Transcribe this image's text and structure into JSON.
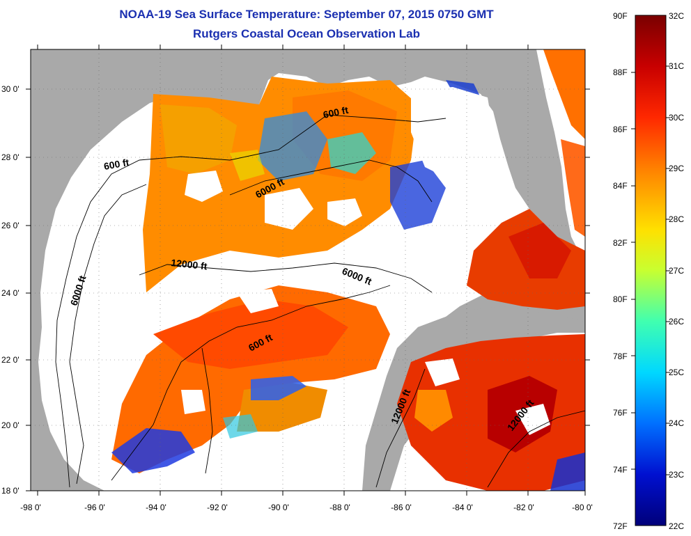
{
  "title": {
    "line1": "NOAA-19 Sea Surface Temperature:  September 07, 2015 0750 GMT",
    "line2": "Rutgers Coastal Ocean Observation Lab"
  },
  "axes": {
    "longitude_labels": [
      "-98 0'",
      "-96 0'",
      "-94 0'",
      "-92 0'",
      "-90 0'",
      "-88 0'",
      "-86 0'",
      "-84 0'",
      "-82 0'",
      "-80 0'"
    ],
    "latitude_labels": [
      "30 0'",
      "28 0'",
      "26 0'",
      "24 0'",
      "22 0'",
      "20 0'",
      "18 0'"
    ]
  },
  "contours": [
    {
      "label": "600 ft"
    },
    {
      "label": "600 ft"
    },
    {
      "label": "6000 ft"
    },
    {
      "label": "6000 ft"
    },
    {
      "label": "6000 ft"
    },
    {
      "label": "12000 ft"
    },
    {
      "label": "600 ft"
    },
    {
      "label": "12000 ft"
    },
    {
      "label": "12000 ft"
    }
  ],
  "colorbar": {
    "fahrenheit": [
      "90F",
      "88F",
      "86F",
      "84F",
      "82F",
      "80F",
      "78F",
      "76F",
      "74F",
      "72F"
    ],
    "celsius": [
      "32C",
      "31C",
      "30C",
      "29C",
      "28C",
      "27C",
      "26C",
      "25C",
      "24C",
      "23C",
      "22C"
    ],
    "colors": [
      "#7a0000",
      "#c80000",
      "#ff3000",
      "#ff8c00",
      "#ffd000",
      "#c8ff30",
      "#50ffa0",
      "#00e0ff",
      "#0080ff",
      "#0010d0",
      "#00008a"
    ]
  },
  "colors": {
    "land": "#a9a9a9",
    "cloud": "#ffffff",
    "title": "#1a2fb0"
  }
}
